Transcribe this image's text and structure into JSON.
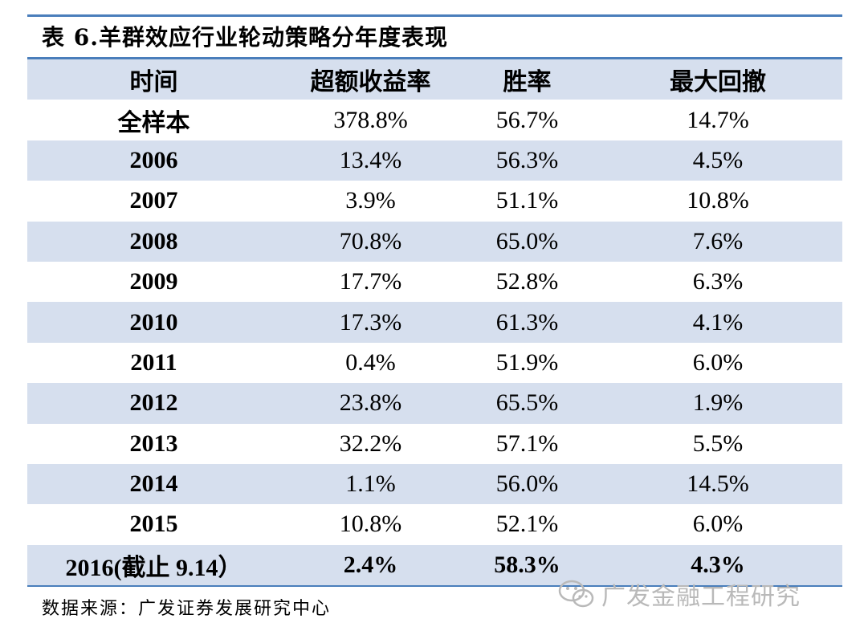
{
  "title": "表 6.羊群效应行业轮动策略分年度表现",
  "columns": [
    "时间",
    "超额收益率",
    "胜率",
    "最大回撤"
  ],
  "rows": [
    [
      "全样本",
      "378.8%",
      "56.7%",
      "14.7%"
    ],
    [
      "2006",
      "13.4%",
      "56.3%",
      "4.5%"
    ],
    [
      "2007",
      "3.9%",
      "51.1%",
      "10.8%"
    ],
    [
      "2008",
      "70.8%",
      "65.0%",
      "7.6%"
    ],
    [
      "2009",
      "17.7%",
      "52.8%",
      "6.3%"
    ],
    [
      "2010",
      "17.3%",
      "61.3%",
      "4.1%"
    ],
    [
      "2011",
      "0.4%",
      "51.9%",
      "6.0%"
    ],
    [
      "2012",
      "23.8%",
      "65.5%",
      "1.9%"
    ],
    [
      "2013",
      "32.2%",
      "57.1%",
      "5.5%"
    ],
    [
      "2014",
      "1.1%",
      "56.0%",
      "14.5%"
    ],
    [
      "2015",
      "10.8%",
      "52.1%",
      "6.0%"
    ],
    [
      "2016(截止 9.14）",
      "2.4%",
      "58.3%",
      "4.3%"
    ]
  ],
  "source": "数据来源：广发证券发展研究中心",
  "watermark": "广发金融工程研究",
  "colors": {
    "accent": "#4a7ebb",
    "shade": "#d6dfee",
    "watermark": "#b9b9b9"
  }
}
